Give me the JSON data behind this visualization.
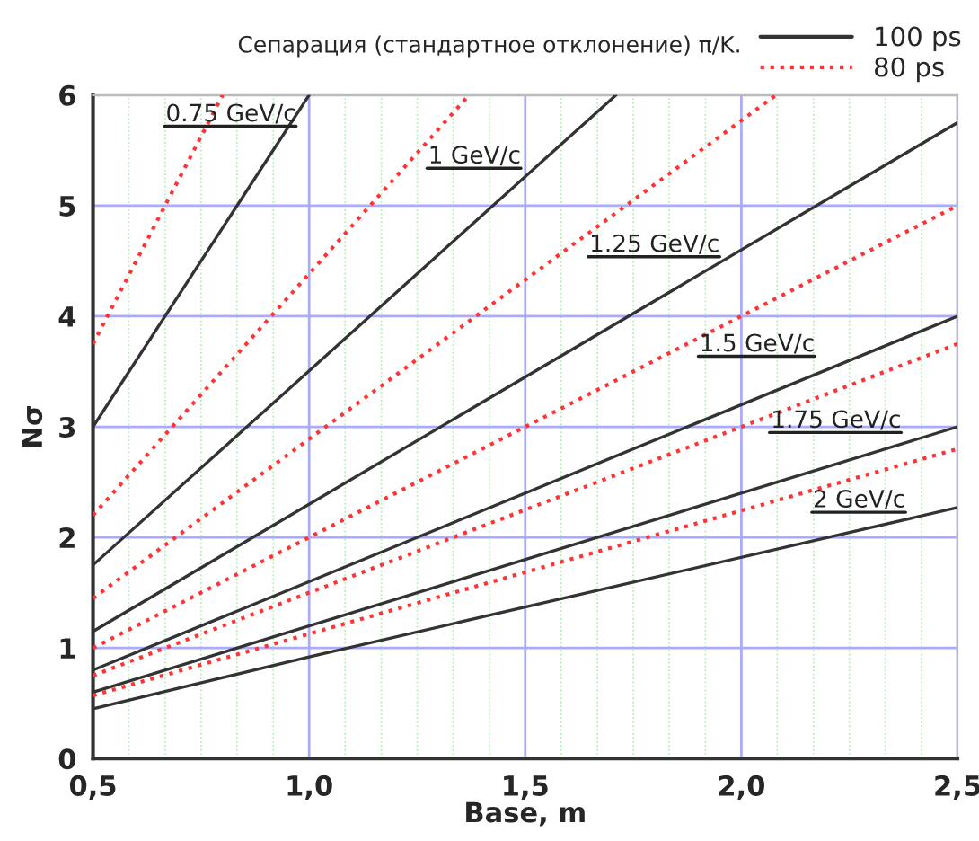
{
  "chart_data": {
    "type": "line",
    "title": "Сепарация (стандартное отклонение) π/K.",
    "xlabel": "Base, m",
    "ylabel": "Nσ",
    "xlim": [
      0.5,
      2.5
    ],
    "ylim": [
      0,
      6
    ],
    "xticks": [
      {
        "value": 0.5,
        "label": "0,5"
      },
      {
        "value": 0.583,
        "label": null
      },
      {
        "value": 0.667,
        "label": null
      },
      {
        "value": 0.75,
        "label": null
      },
      {
        "value": 0.833,
        "label": null
      },
      {
        "value": 0.917,
        "label": null
      },
      {
        "value": 1.0,
        "label": "1,0"
      },
      {
        "value": 1.083,
        "label": null
      },
      {
        "value": 1.167,
        "label": null
      },
      {
        "value": 1.25,
        "label": null
      },
      {
        "value": 1.333,
        "label": null
      },
      {
        "value": 1.417,
        "label": null
      },
      {
        "value": 1.5,
        "label": "1,5"
      },
      {
        "value": 1.583,
        "label": null
      },
      {
        "value": 1.667,
        "label": null
      },
      {
        "value": 1.75,
        "label": null
      },
      {
        "value": 1.833,
        "label": null
      },
      {
        "value": 1.917,
        "label": null
      },
      {
        "value": 2.0,
        "label": "2,0"
      },
      {
        "value": 2.083,
        "label": null
      },
      {
        "value": 2.167,
        "label": null
      },
      {
        "value": 2.25,
        "label": null
      },
      {
        "value": 2.333,
        "label": null
      },
      {
        "value": 2.417,
        "label": null
      },
      {
        "value": 2.5,
        "label": "2,5"
      }
    ],
    "yticks": [
      0,
      1,
      2,
      3,
      4,
      5,
      6
    ],
    "grid": true,
    "legend": "top right",
    "marker": "none",
    "series": [
      {
        "name": "100 ps",
        "color": "#333333",
        "line_style": "solid",
        "x": [
          0.5,
          1.0
        ],
        "values": [
          3.0,
          6.0
        ]
      },
      {
        "color": "#333333",
        "line_style": "solid",
        "x": [
          0.5,
          1.71
        ],
        "values": [
          1.75,
          6.0
        ]
      },
      {
        "color": "#333333",
        "line_style": "solid",
        "x": [
          0.5,
          2.5
        ],
        "values": [
          1.15,
          5.75
        ]
      },
      {
        "color": "#333333",
        "line_style": "solid",
        "x": [
          0.5,
          2.5
        ],
        "values": [
          0.8,
          4.0
        ]
      },
      {
        "color": "#333333",
        "line_style": "solid",
        "x": [
          0.5,
          2.5
        ],
        "values": [
          0.6,
          3.0
        ]
      },
      {
        "color": "#333333",
        "line_style": "solid",
        "x": [
          0.5,
          1.0,
          2.5
        ],
        "values": [
          0.45,
          0.92,
          2.27
        ]
      },
      {
        "name": "80 ps",
        "color": "#ff3333",
        "line_style": "dotted",
        "x": [
          0.5,
          0.8
        ],
        "values": [
          3.75,
          6.0
        ]
      },
      {
        "color": "#ff3333",
        "line_style": "dotted",
        "x": [
          0.5,
          1.37
        ],
        "values": [
          2.2,
          6.0
        ]
      },
      {
        "color": "#ff3333",
        "line_style": "dotted",
        "x": [
          0.5,
          2.08
        ],
        "values": [
          1.45,
          6.0
        ]
      },
      {
        "color": "#ff3333",
        "line_style": "dotted",
        "x": [
          0.5,
          2.5
        ],
        "values": [
          1.0,
          5.0
        ]
      },
      {
        "color": "#ff3333",
        "line_style": "dotted",
        "x": [
          0.5,
          2.5
        ],
        "values": [
          0.75,
          3.75
        ]
      },
      {
        "color": "#ff3333",
        "line_style": "dotted",
        "x": [
          0.5,
          2.5
        ],
        "values": [
          0.57,
          2.8
        ]
      }
    ],
    "annotations": [
      {
        "text": "0.75 GeV/c",
        "x": 0.97,
        "y": 5.65
      },
      {
        "text": "1 GeV/c",
        "x": 1.49,
        "y": 5.27
      },
      {
        "text": "1.25 GeV/c",
        "x": 1.95,
        "y": 4.47
      },
      {
        "text": "1.5 GeV/c",
        "x": 2.17,
        "y": 3.57
      },
      {
        "text": "1.75 GeV/c",
        "x": 2.37,
        "y": 2.88
      },
      {
        "text": "2 GeV/c",
        "x": 2.38,
        "y": 2.16
      }
    ]
  }
}
